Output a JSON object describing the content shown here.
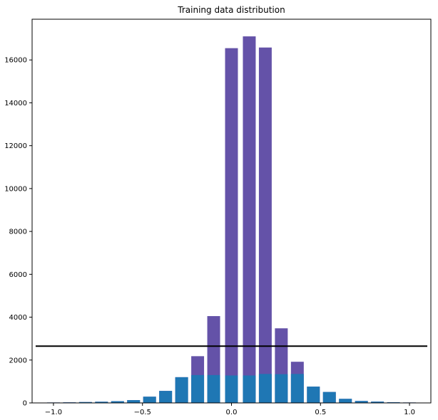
{
  "chart_data": {
    "type": "bar",
    "title": "Training data distribution",
    "xlabel": "",
    "ylabel": "",
    "xlim": [
      -1.12,
      1.12
    ],
    "ylim": [
      0,
      17900
    ],
    "bar_width": 0.072,
    "x": [
      -1.0,
      -0.91,
      -0.82,
      -0.73,
      -0.64,
      -0.55,
      -0.46,
      -0.37,
      -0.28,
      -0.19,
      -0.1,
      0.0,
      0.1,
      0.19,
      0.28,
      0.37,
      0.46,
      0.55,
      0.64,
      0.73,
      0.82,
      0.91,
      1.0
    ],
    "series": [
      {
        "values": [
          20,
          25,
          40,
          55,
          80,
          130,
          290,
          560,
          1200,
          2180,
          4050,
          16550,
          17100,
          16580,
          3480,
          1920,
          760,
          510,
          190,
          90,
          60,
          30,
          20
        ],
        "color": "#6452a8"
      },
      {
        "values": [
          20,
          25,
          40,
          55,
          80,
          130,
          290,
          560,
          1200,
          1300,
          1300,
          1280,
          1280,
          1350,
          1340,
          1350,
          760,
          510,
          190,
          90,
          60,
          30,
          20
        ],
        "color": "#1f77b4"
      }
    ],
    "hline": {
      "y": 2650,
      "xmin": -1.12,
      "xmax": 1.12,
      "color": "#000000"
    },
    "xticks": [
      -1.0,
      -0.5,
      0.0,
      0.5,
      1.0
    ],
    "xtick_labels": [
      "−1.0",
      "−0.5",
      "0.0",
      "0.5",
      "1.0"
    ],
    "yticks": [
      0,
      2000,
      4000,
      6000,
      8000,
      10000,
      12000,
      14000,
      16000
    ],
    "ytick_labels": [
      "0",
      "2000",
      "4000",
      "6000",
      "8000",
      "10000",
      "12000",
      "14000",
      "16000"
    ],
    "grid": false,
    "legend": "none"
  }
}
